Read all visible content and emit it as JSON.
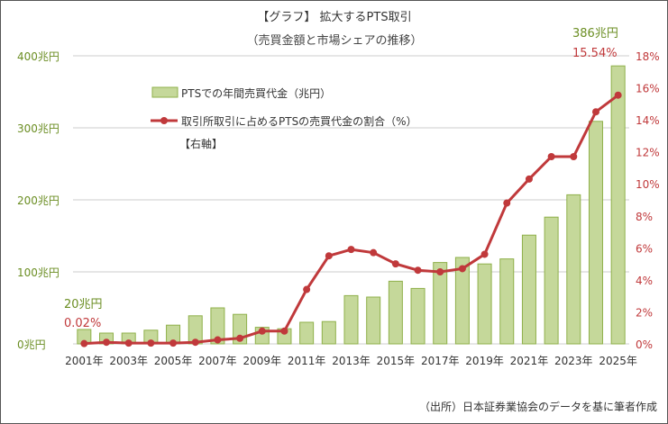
{
  "chart_data": {
    "type": "bar+line",
    "title": "【グラフ】 拡大するPTS取引",
    "subtitle": "（売買金額と市場シェアの推移）",
    "source": "（出所）日本証券業協会のデータを基に筆者作成",
    "categories": [
      "2001年",
      "2002年",
      "2003年",
      "2004年",
      "2005年",
      "2006年",
      "2007年",
      "2008年",
      "2009年",
      "2010年",
      "2011年",
      "2012年",
      "2013年",
      "2014年",
      "2015年",
      "2016年",
      "2017年",
      "2018年",
      "2019年",
      "2020年",
      "2021年",
      "2022年",
      "2023年",
      "2024年",
      "2025年"
    ],
    "series": [
      {
        "name": "PTSでの年間売買代金（兆円）",
        "type": "bar",
        "axis": "left",
        "color": "#c5d89a",
        "values": [
          20,
          15,
          15,
          19,
          26,
          39,
          50,
          41,
          23,
          21,
          30,
          31,
          67,
          65,
          87,
          77,
          113,
          120,
          111,
          118,
          151,
          176,
          207,
          309,
          386
        ]
      },
      {
        "name": "取引所取引に占めるPTSの売買代金の割合（%）",
        "type": "line",
        "axis": "right",
        "color": "#c0393b",
        "values": [
          0.02,
          0.1,
          0.05,
          0.05,
          0.05,
          0.1,
          0.25,
          0.35,
          0.8,
          0.8,
          3.4,
          5.5,
          5.9,
          5.7,
          5.0,
          4.6,
          4.5,
          4.7,
          5.6,
          8.8,
          10.3,
          11.7,
          11.7,
          14.5,
          15.54
        ]
      }
    ],
    "legend_note": "【右軸】",
    "left_axis": {
      "ylim": [
        0,
        400
      ],
      "ticks": [
        "0兆円",
        "100兆円",
        "200兆円",
        "300兆円",
        "400兆円"
      ]
    },
    "right_axis": {
      "ylim": [
        0,
        18
      ],
      "ticks": [
        "0%",
        "2%",
        "4%",
        "6%",
        "8%",
        "10%",
        "12%",
        "14%",
        "16%",
        "18%"
      ]
    },
    "x_tick_labels": [
      "2001年",
      "2003年",
      "2005年",
      "2007年",
      "2009年",
      "2011年",
      "2013年",
      "2015年",
      "2017年",
      "2019年",
      "2021年",
      "2023年",
      "2025年"
    ],
    "annotations": {
      "first_bar": "20兆円",
      "first_pct": "0.02%",
      "last_bar": "386兆円",
      "last_pct": "15.54%"
    },
    "grid": true
  }
}
